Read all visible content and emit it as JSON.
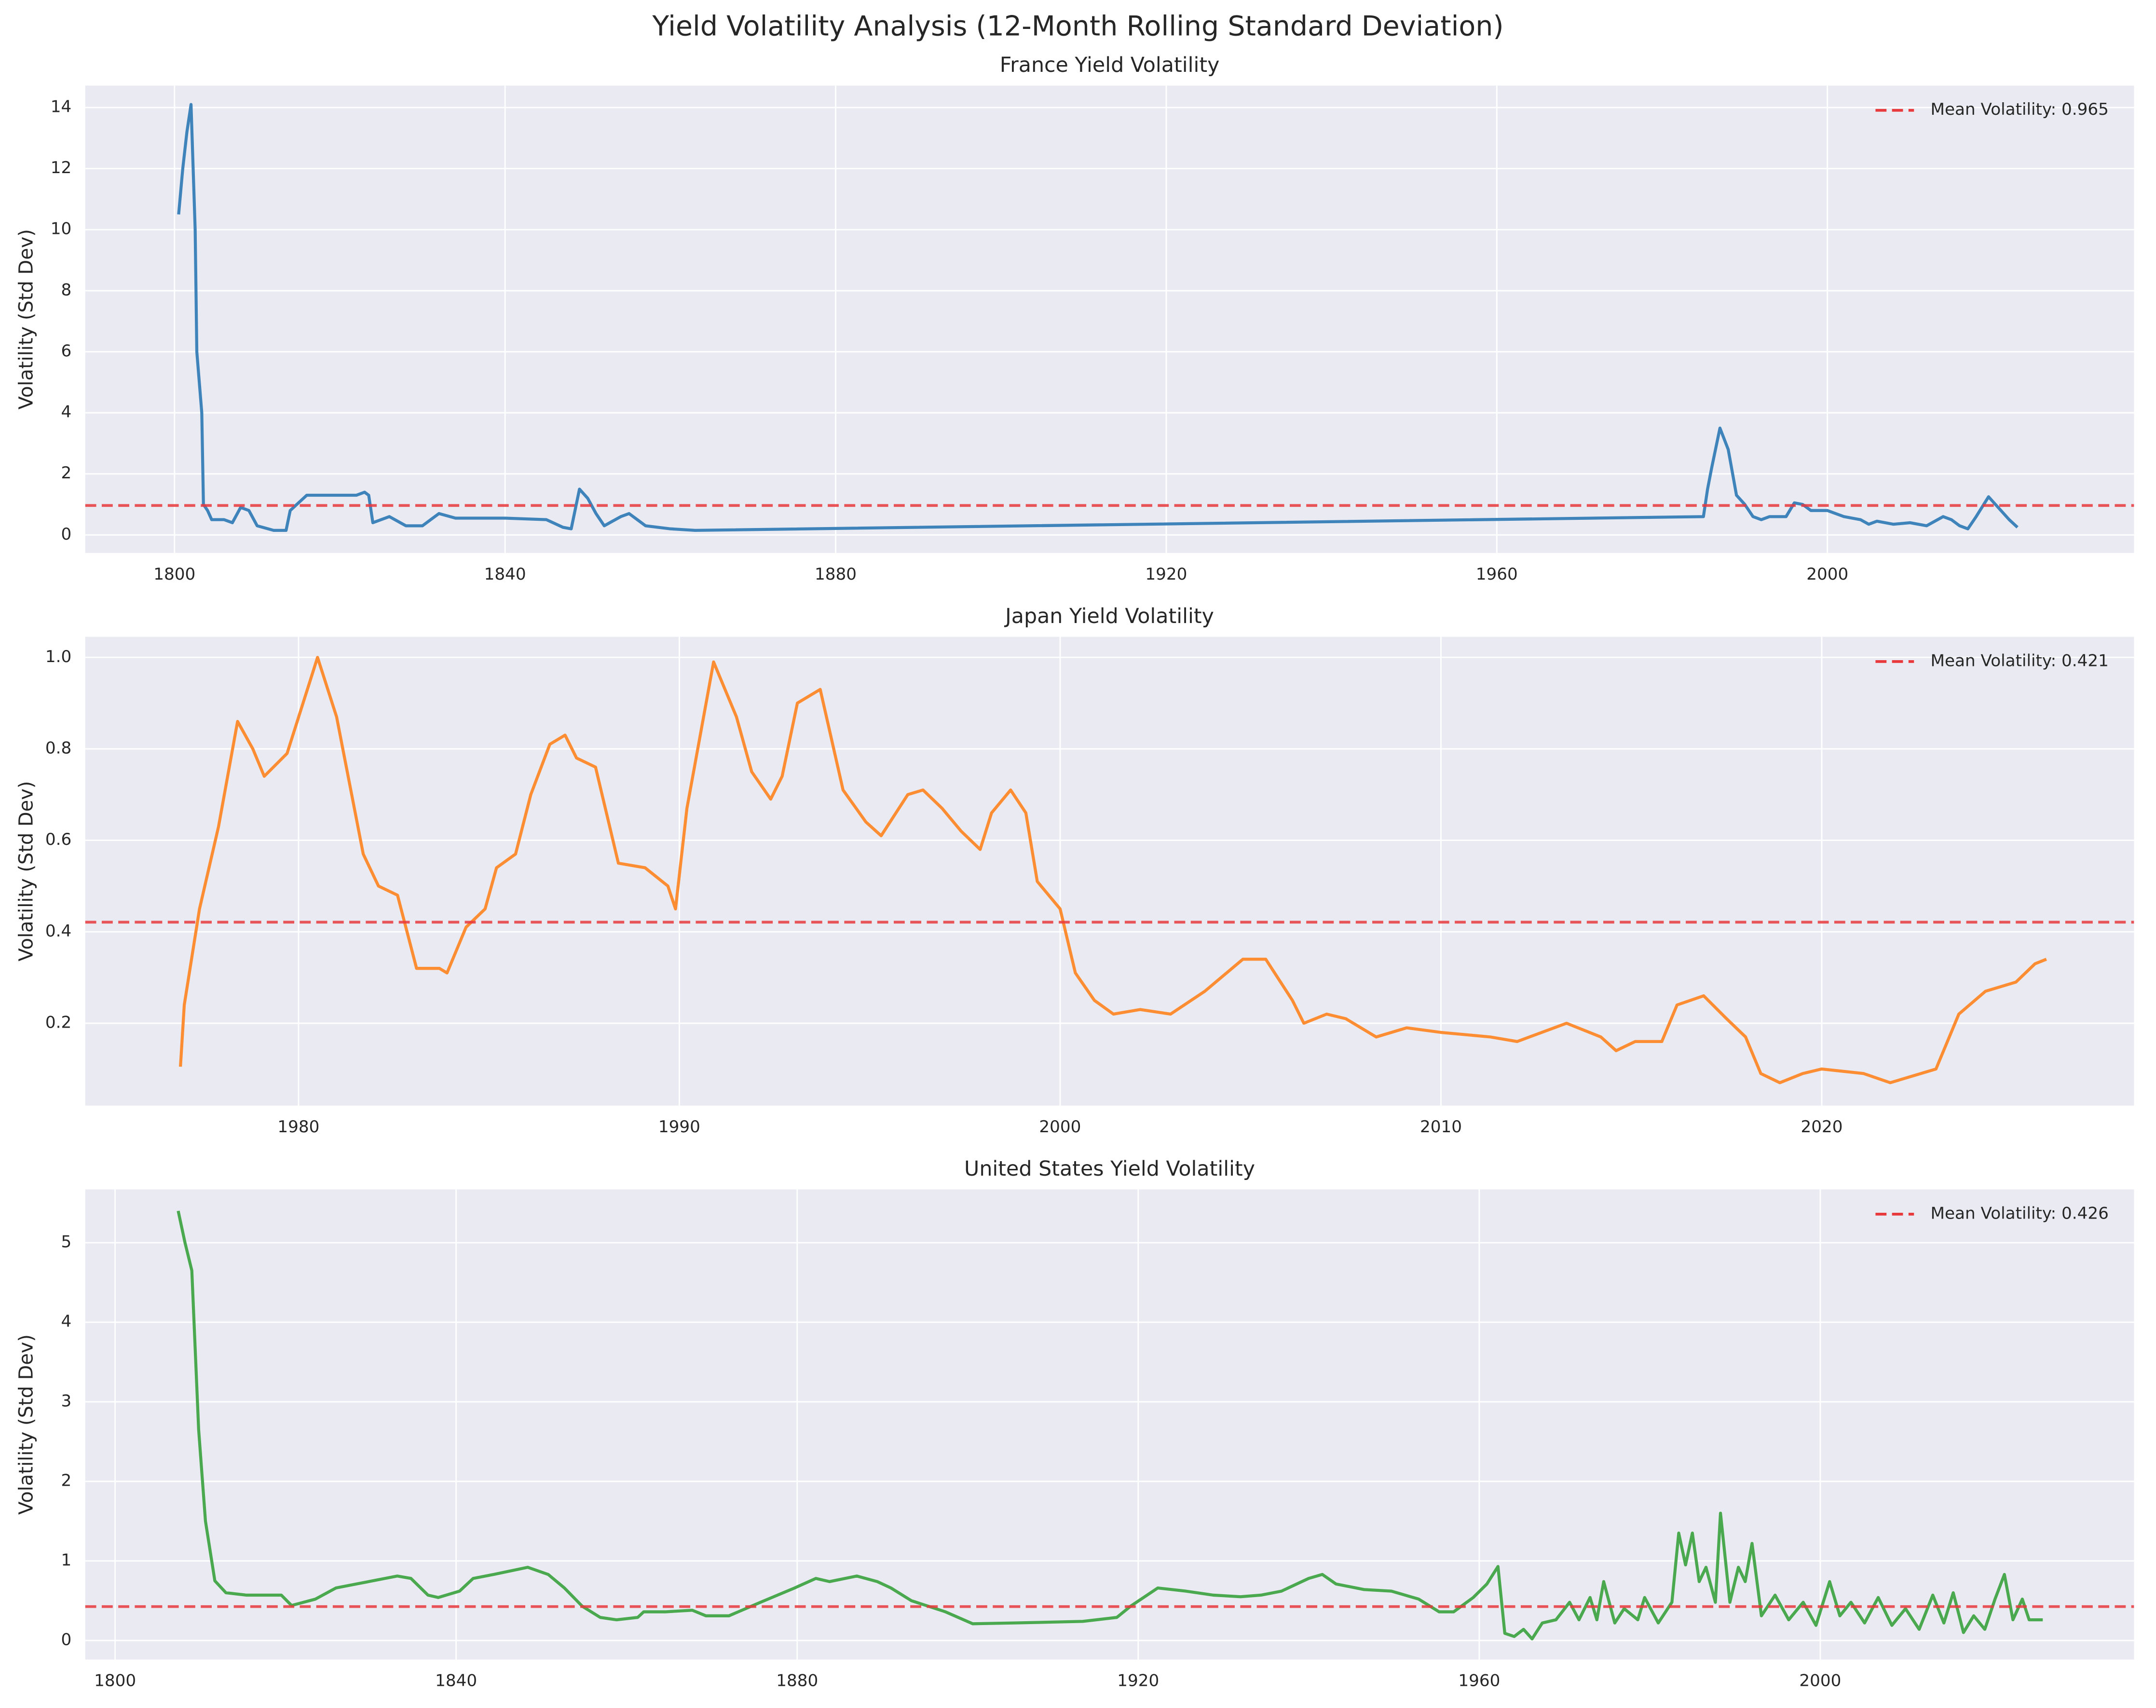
{
  "title": "Yield Volatility Analysis (12-Month Rolling Standard Deviation)",
  "chart_data": [
    {
      "type": "line",
      "title": "France Yield Volatility",
      "ylabel": "Volatility (Std Dev)",
      "grid": true,
      "legend": "upper right",
      "xlim": [
        1789.2,
        2037.1
      ],
      "ylim": [
        -0.59,
        14.72
      ],
      "xticks": [
        1800,
        1840,
        1880,
        1920,
        1960,
        2000
      ],
      "yticks": [
        0,
        2,
        4,
        6,
        8,
        10,
        12,
        14
      ],
      "x": [
        1800.5,
        1801,
        1801.5,
        1802,
        1802.5,
        1802.7,
        1803.3,
        1803.5,
        1804,
        1804.5,
        1806,
        1807,
        1808,
        1809,
        1810,
        1812,
        1813.5,
        1814,
        1816,
        1820,
        1822,
        1823,
        1823.5,
        1824,
        1826,
        1828,
        1830,
        1831,
        1832,
        1834,
        1840,
        1845,
        1847,
        1848,
        1849,
        1850,
        1851,
        1852,
        1854,
        1855,
        1856,
        1857,
        1860,
        1863,
        1985,
        1985.5,
        1986,
        1987,
        1988,
        1989,
        1990,
        1991,
        1992,
        1993,
        1995,
        1996,
        1997,
        1998,
        2000,
        2002,
        2004,
        2005,
        2006,
        2008,
        2010,
        2012,
        2014,
        2015,
        2016,
        2017,
        2018,
        2019.5,
        2021,
        2022,
        2023
      ],
      "values": [
        10.5,
        12,
        13.2,
        14.1,
        10,
        6,
        4,
        1,
        0.8,
        0.5,
        0.5,
        0.4,
        0.9,
        0.8,
        0.3,
        0.15,
        0.15,
        0.8,
        1.3,
        1.3,
        1.3,
        1.4,
        1.3,
        0.4,
        0.6,
        0.3,
        0.3,
        0.5,
        0.7,
        0.55,
        0.55,
        0.5,
        0.25,
        0.2,
        1.5,
        1.2,
        0.7,
        0.3,
        0.6,
        0.7,
        0.5,
        0.3,
        0.2,
        0.15,
        0.6,
        1.5,
        2.2,
        3.5,
        2.8,
        1.3,
        1,
        0.6,
        0.5,
        0.6,
        0.6,
        1.05,
        1.0,
        0.8,
        0.8,
        0.6,
        0.5,
        0.35,
        0.45,
        0.35,
        0.4,
        0.3,
        0.6,
        0.5,
        0.3,
        0.2,
        0.6,
        1.25,
        0.8,
        0.5,
        0.25
      ],
      "color": "#3f83bb",
      "mean_line": {
        "value": 0.965,
        "label": "Mean Volatility: 0.965",
        "color": "#e8393d"
      }
    },
    {
      "type": "line",
      "title": "Japan Yield Volatility",
      "ylabel": "Volatility (Std Dev)",
      "grid": true,
      "legend": "upper right",
      "xlim": [
        1974.4,
        2028.2
      ],
      "ylim": [
        0.02,
        1.045
      ],
      "xticks": [
        1980,
        1990,
        2000,
        2010,
        2020
      ],
      "yticks": [
        0.2,
        0.4,
        0.6,
        0.8,
        {
          "value": 1,
          "label": "1.0"
        }
      ],
      "x": [
        1976.9,
        1977.0,
        1977.4,
        1977.9,
        1978.4,
        1978.8,
        1979.1,
        1979.7,
        1980.5,
        1981,
        1981.7,
        1982.1,
        1982.6,
        1983.1,
        1983.7,
        1983.9,
        1984.4,
        1984.9,
        1985.2,
        1985.7,
        1986.1,
        1986.6,
        1987.0,
        1987.3,
        1987.8,
        1988.4,
        1989.1,
        1989.7,
        1989.9,
        1990.2,
        1990.9,
        1991.5,
        1991.9,
        1992.4,
        1992.7,
        1993.1,
        1993.7,
        1994.3,
        1994.9,
        1995.3,
        1996.0,
        1996.4,
        1996.9,
        1997.4,
        1997.9,
        1998.2,
        1998.7,
        1999.1,
        1999.4,
        2000.0,
        2000.4,
        2000.9,
        2001.4,
        2002.1,
        2002.9,
        2003.8,
        2004.8,
        2005.4,
        2006.1,
        2006.4,
        2007.0,
        2007.5,
        2008.3,
        2009.1,
        2010.0,
        2011.3,
        2012.0,
        2013.3,
        2014.2,
        2014.6,
        2015.1,
        2015.8,
        2016.2,
        2016.9,
        2017.5,
        2018.0,
        2018.4,
        2018.9,
        2019.5,
        2020.0,
        2021.1,
        2021.8,
        2022.2,
        2023,
        2023.6,
        2024.3,
        2025.1,
        2025.6,
        2025.9
      ],
      "values": [
        0.105,
        0.24,
        0.45,
        0.63,
        0.86,
        0.8,
        0.74,
        0.79,
        1.0,
        0.87,
        0.57,
        0.5,
        0.48,
        0.32,
        0.32,
        0.31,
        0.41,
        0.45,
        0.54,
        0.57,
        0.7,
        0.81,
        0.83,
        0.78,
        0.76,
        0.55,
        0.54,
        0.5,
        0.45,
        0.67,
        0.99,
        0.87,
        0.75,
        0.69,
        0.74,
        0.9,
        0.93,
        0.71,
        0.64,
        0.61,
        0.7,
        0.71,
        0.67,
        0.62,
        0.58,
        0.66,
        0.71,
        0.66,
        0.51,
        0.45,
        0.31,
        0.25,
        0.22,
        0.23,
        0.22,
        0.27,
        0.34,
        0.34,
        0.25,
        0.2,
        0.22,
        0.21,
        0.17,
        0.19,
        0.18,
        0.17,
        0.16,
        0.2,
        0.17,
        0.14,
        0.16,
        0.16,
        0.24,
        0.26,
        0.21,
        0.17,
        0.09,
        0.07,
        0.09,
        0.1,
        0.09,
        0.07,
        0.08,
        0.1,
        0.22,
        0.27,
        0.29,
        0.33,
        0.34
      ],
      "color": "#fd8d33",
      "mean_line": {
        "value": 0.421,
        "label": "Mean Volatility: 0.421",
        "color": "#e8393d"
      }
    },
    {
      "type": "line",
      "title": "United States Yield Volatility",
      "ylabel": "Volatility (Std Dev)",
      "grid": true,
      "legend": "upper right",
      "xlim": [
        1796.5,
        2036.8
      ],
      "ylim": [
        -0.24,
        5.67
      ],
      "xticks": [
        1800,
        1840,
        1880,
        1920,
        1960,
        2000
      ],
      "yticks": [
        0,
        1,
        2,
        3,
        4,
        5
      ],
      "x": [
        1807.4,
        1808.2,
        1809,
        1809.8,
        1810.6,
        1811.7,
        1813,
        1815.4,
        1819.5,
        1820.7,
        1823.5,
        1825.9,
        1828.3,
        1833.1,
        1834.7,
        1836.7,
        1837.9,
        1840.4,
        1842,
        1844.4,
        1848.4,
        1850.8,
        1852.7,
        1854.8,
        1856.9,
        1858.8,
        1861.3,
        1862,
        1864.5,
        1867.7,
        1869.3,
        1872,
        1875.7,
        1879.7,
        1882.2,
        1883.8,
        1887,
        1889.4,
        1891,
        1893.4,
        1897.4,
        1900.6,
        1905.5,
        1913.5,
        1917.5,
        1919.1,
        1922.3,
        1925.6,
        1928.8,
        1932,
        1934.4,
        1936.8,
        1940,
        1941.6,
        1943.2,
        1946.5,
        1949.7,
        1952.9,
        1955.3,
        1957,
        1959.3,
        1960.9,
        1962.2,
        1963,
        1964.1,
        1965.2,
        1966.2,
        1967.4,
        1969,
        1970.6,
        1971.7,
        1973,
        1973.8,
        1974.6,
        1975.9,
        1977,
        1978.6,
        1979.4,
        1981,
        1982.6,
        1983.4,
        1984.2,
        1985,
        1985.8,
        1986.6,
        1987.7,
        1988.3,
        1989.4,
        1990.4,
        1991.2,
        1992,
        1993.1,
        1994.7,
        1996.3,
        1998,
        1999.5,
        2001.1,
        2002.3,
        2003.6,
        2005.2,
        2006.8,
        2008.4,
        2010,
        2011.6,
        2013.2,
        2014.5,
        2015.6,
        2016.8,
        2018,
        2019.3,
        2020.5,
        2021.6,
        2022.6,
        2023.7,
        2024.5,
        2026.1
      ],
      "values": [
        5.4,
        5.0,
        4.65,
        2.65,
        1.5,
        0.75,
        0.6,
        0.57,
        0.57,
        0.44,
        0.52,
        0.66,
        0.71,
        0.81,
        0.78,
        0.57,
        0.54,
        0.62,
        0.78,
        0.83,
        0.92,
        0.83,
        0.66,
        0.43,
        0.29,
        0.26,
        0.29,
        0.36,
        0.36,
        0.38,
        0.31,
        0.31,
        0.48,
        0.66,
        0.78,
        0.74,
        0.81,
        0.74,
        0.66,
        0.5,
        0.36,
        0.21,
        0.22,
        0.24,
        0.29,
        0.43,
        0.66,
        0.62,
        0.57,
        0.55,
        0.57,
        0.62,
        0.78,
        0.83,
        0.71,
        0.64,
        0.62,
        0.52,
        0.36,
        0.36,
        0.54,
        0.71,
        0.93,
        0.09,
        0.05,
        0.14,
        0.02,
        0.22,
        0.26,
        0.48,
        0.26,
        0.54,
        0.26,
        0.74,
        0.22,
        0.4,
        0.26,
        0.54,
        0.22,
        0.48,
        1.35,
        0.95,
        1.35,
        0.74,
        0.92,
        0.48,
        1.6,
        0.48,
        0.92,
        0.74,
        1.22,
        0.31,
        0.57,
        0.26,
        0.48,
        0.19,
        0.74,
        0.31,
        0.48,
        0.22,
        0.54,
        0.19,
        0.4,
        0.14,
        0.57,
        0.22,
        0.6,
        0.1,
        0.31,
        0.14,
        0.52,
        0.83,
        0.26,
        0.52,
        0.26,
        0.26
      ],
      "color": "#4aa94e",
      "mean_line": {
        "value": 0.426,
        "label": "Mean Volatility: 0.426",
        "color": "#e8393d"
      }
    }
  ]
}
